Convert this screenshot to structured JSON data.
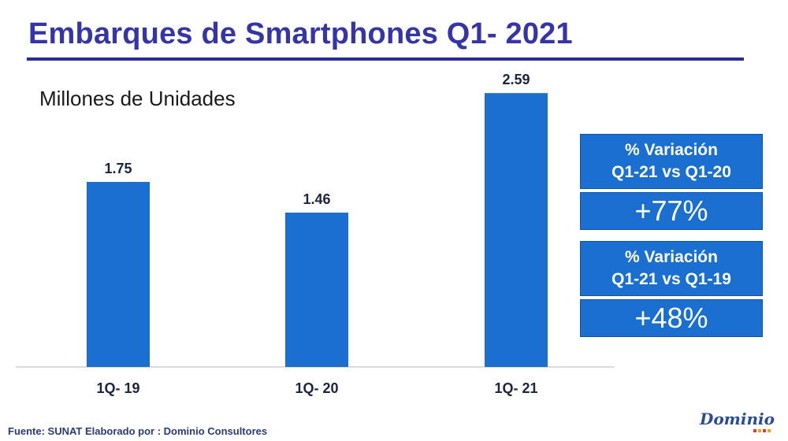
{
  "title": "Embarques de Smartphones Q1- 2021",
  "subtitle": "Millones de Unidades",
  "chart_data": {
    "type": "bar",
    "categories": [
      "1Q- 19",
      "1Q- 20",
      "1Q- 21"
    ],
    "values": [
      1.75,
      1.46,
      2.59
    ],
    "value_labels": [
      "1.75",
      "1.46",
      "2.59"
    ],
    "title": "Embarques de Smartphones Q1- 2021",
    "ylabel": "Millones de Unidades",
    "ylim": [
      0,
      2.8
    ],
    "grid": false,
    "legend": "none",
    "bar_color": "#1a6fd0"
  },
  "variations": [
    {
      "line1": "% Variación",
      "line2": "Q1-21 vs Q1-20",
      "value": "+77%"
    },
    {
      "line1": "% Variación",
      "line2": "Q1-21 vs Q1-19",
      "value": "+48%"
    }
  ],
  "footer": "Fuente: SUNAT Elaborado por : Dominio Consultores",
  "logo_text": "Dominio",
  "colors": {
    "title": "#3535a8",
    "bar": "#1a6fd0",
    "box": "#1a6fd0",
    "accent_dots": [
      "#e23b2f",
      "#f2a30f",
      "#e23b2f",
      "#f2a30f"
    ]
  }
}
